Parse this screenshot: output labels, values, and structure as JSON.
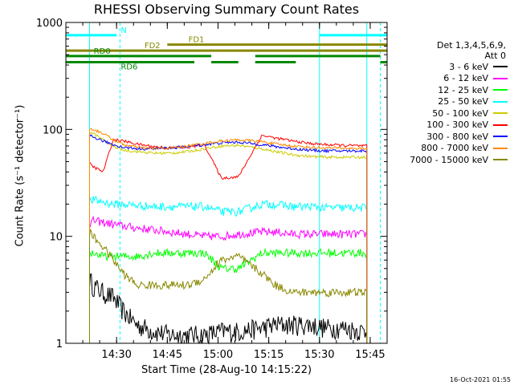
{
  "chart_data": {
    "type": "line",
    "title": "RHESSI Observing Summary Count Rates",
    "xlabel": "Start Time (28-Aug-10 14:15:22)",
    "ylabel": "Count Rate (s⁻¹ detector⁻¹)",
    "yscale": "log",
    "ylim": [
      1,
      1000
    ],
    "xlim": [
      "14:15",
      "15:50"
    ],
    "xlim_min": [
      855,
      950
    ],
    "x_ticks": [
      "14:30",
      "14:45",
      "15:00",
      "15:15",
      "15:30",
      "15:45"
    ],
    "x_tick_min": [
      870,
      885,
      900,
      915,
      930,
      945
    ],
    "y_ticks": [
      "1",
      "10",
      "100",
      "1000"
    ],
    "y_tick_values": [
      1,
      10,
      100,
      1000
    ],
    "legend_header": [
      "Det 1,3,4,5,6,9,",
      "Att 0"
    ],
    "legend_position": "right",
    "grid": false,
    "data_window_min": [
      862,
      944
    ],
    "series": [
      {
        "name": "3 - 6 keV",
        "color": "#000000",
        "x": [
          862,
          863,
          866,
          869,
          872,
          876,
          881,
          886,
          891,
          896,
          901,
          906,
          913,
          917,
          922,
          927,
          932,
          937,
          943
        ],
        "values": [
          4,
          3.5,
          3,
          2.7,
          2,
          1.5,
          1.3,
          1.2,
          1.2,
          1.2,
          1.3,
          1.3,
          1.4,
          1.5,
          1.5,
          1.5,
          1.4,
          1.4,
          1.3
        ]
      },
      {
        "name": "6 - 12 keV",
        "color": "#ff00ff",
        "x": [
          862,
          863,
          866,
          869,
          872,
          876,
          881,
          886,
          891,
          896,
          901,
          906,
          913,
          917,
          922,
          927,
          932,
          937,
          943
        ],
        "values": [
          13,
          14,
          13.5,
          13,
          12.5,
          12,
          11.5,
          11,
          10.5,
          10,
          10,
          10.5,
          11,
          11,
          10.5,
          10.5,
          10.5,
          10.5,
          10.5
        ]
      },
      {
        "name": "12 - 25 keV",
        "color": "#00ff00",
        "x": [
          862,
          863,
          866,
          869,
          872,
          876,
          881,
          886,
          891,
          896,
          901,
          906,
          913,
          917,
          922,
          927,
          932,
          937,
          943
        ],
        "values": [
          7,
          7,
          6.5,
          6.5,
          6.5,
          6.5,
          7,
          7,
          7,
          7,
          5,
          5,
          7,
          7,
          7,
          7,
          7,
          7,
          7
        ]
      },
      {
        "name": "25 - 50 keV",
        "color": "#00ffff",
        "x": [
          862,
          863,
          866,
          869,
          872,
          876,
          881,
          886,
          891,
          896,
          901,
          906,
          913,
          917,
          922,
          927,
          932,
          937,
          943
        ],
        "values": [
          21,
          22,
          21,
          20,
          20,
          19.5,
          19,
          19,
          19,
          19,
          17,
          17,
          20,
          20,
          19,
          19,
          18.5,
          18.5,
          18.5
        ]
      },
      {
        "name": "50 - 100 keV",
        "color": "#cccc00",
        "x": [
          862,
          863,
          866,
          869,
          872,
          876,
          881,
          886,
          891,
          896,
          901,
          906,
          913,
          917,
          922,
          927,
          932,
          937,
          943
        ],
        "values": [
          95,
          92,
          80,
          70,
          64,
          62,
          60,
          60,
          62,
          66,
          70,
          71,
          66,
          62,
          58,
          56,
          55,
          55,
          55
        ]
      },
      {
        "name": "100 - 300 keV",
        "color": "#ff0000",
        "x": [
          862,
          863,
          866,
          869,
          872,
          876,
          881,
          886,
          891,
          896,
          901,
          906,
          913,
          917,
          922,
          927,
          932,
          937,
          943
        ],
        "values": [
          48,
          45,
          40,
          80,
          78,
          73,
          69,
          67,
          68,
          72,
          35,
          36,
          88,
          83,
          78,
          74,
          72,
          71,
          70
        ]
      },
      {
        "name": "300 - 800 keV",
        "color": "#0000ff",
        "x": [
          862,
          863,
          866,
          869,
          872,
          876,
          881,
          886,
          891,
          896,
          901,
          906,
          913,
          917,
          922,
          927,
          932,
          937,
          943
        ],
        "values": [
          88,
          85,
          78,
          72,
          68,
          66,
          66,
          67,
          69,
          72,
          75,
          76,
          72,
          69,
          66,
          64,
          63,
          63,
          63
        ]
      },
      {
        "name": "800 - 7000 keV",
        "color": "#ff8800",
        "x": [
          862,
          863,
          866,
          869,
          872,
          876,
          881,
          886,
          891,
          896,
          901,
          906,
          913,
          917,
          922,
          927,
          932,
          937,
          943
        ],
        "values": [
          102,
          100,
          92,
          80,
          72,
          68,
          66,
          67,
          70,
          74,
          78,
          80,
          77,
          73,
          70,
          68,
          67,
          67,
          66
        ]
      },
      {
        "name": "7000 - 15000 keV",
        "color": "#888800",
        "x": [
          862,
          863,
          866,
          869,
          872,
          876,
          881,
          886,
          891,
          896,
          901,
          906,
          913,
          917,
          922,
          927,
          932,
          937,
          943
        ],
        "values": [
          11,
          10,
          8,
          6,
          4.5,
          3.5,
          3.5,
          3.5,
          3.5,
          4,
          6,
          6.5,
          4.5,
          3.5,
          3,
          3,
          3,
          3,
          3
        ]
      }
    ],
    "flag_bars": [
      {
        "name": "N",
        "color": "#00ffff",
        "level": 760,
        "label_at_min": 871,
        "segments": [
          [
            855,
            870
          ],
          [
            930,
            950
          ]
        ]
      },
      {
        "name": "FD1",
        "color": "#888800",
        "level": 620,
        "label_at_min": 891,
        "segments": [
          [
            885,
            950
          ]
        ]
      },
      {
        "name": "FD2",
        "color": "#888800",
        "level": 545,
        "label_at_min": 878,
        "segments": [
          [
            855,
            950
          ]
        ]
      },
      {
        "name": "RD0",
        "color": "#008800",
        "level": 485,
        "label_at_min": 863,
        "segments": [
          [
            855,
            898
          ],
          [
            911,
            948
          ]
        ]
      },
      {
        "name": "RD6",
        "color": "#008800",
        "level": 425,
        "label_at_min": 871,
        "segments": [
          [
            855,
            893
          ],
          [
            898,
            906
          ],
          [
            911,
            923
          ],
          [
            948,
            950
          ]
        ]
      }
    ],
    "vertical_lines": [
      {
        "min": 862,
        "color": "#00ffff",
        "style": "solid"
      },
      {
        "min": 871,
        "color": "#00ffff",
        "style": "dashed"
      },
      {
        "min": 930,
        "color": "#00ffff",
        "style": "solid"
      },
      {
        "min": 944,
        "color": "#00ffff",
        "style": "solid"
      },
      {
        "min": 948,
        "color": "#00ffff",
        "style": "dashed"
      }
    ],
    "timestamp": "16-Oct-2021 01:55"
  }
}
